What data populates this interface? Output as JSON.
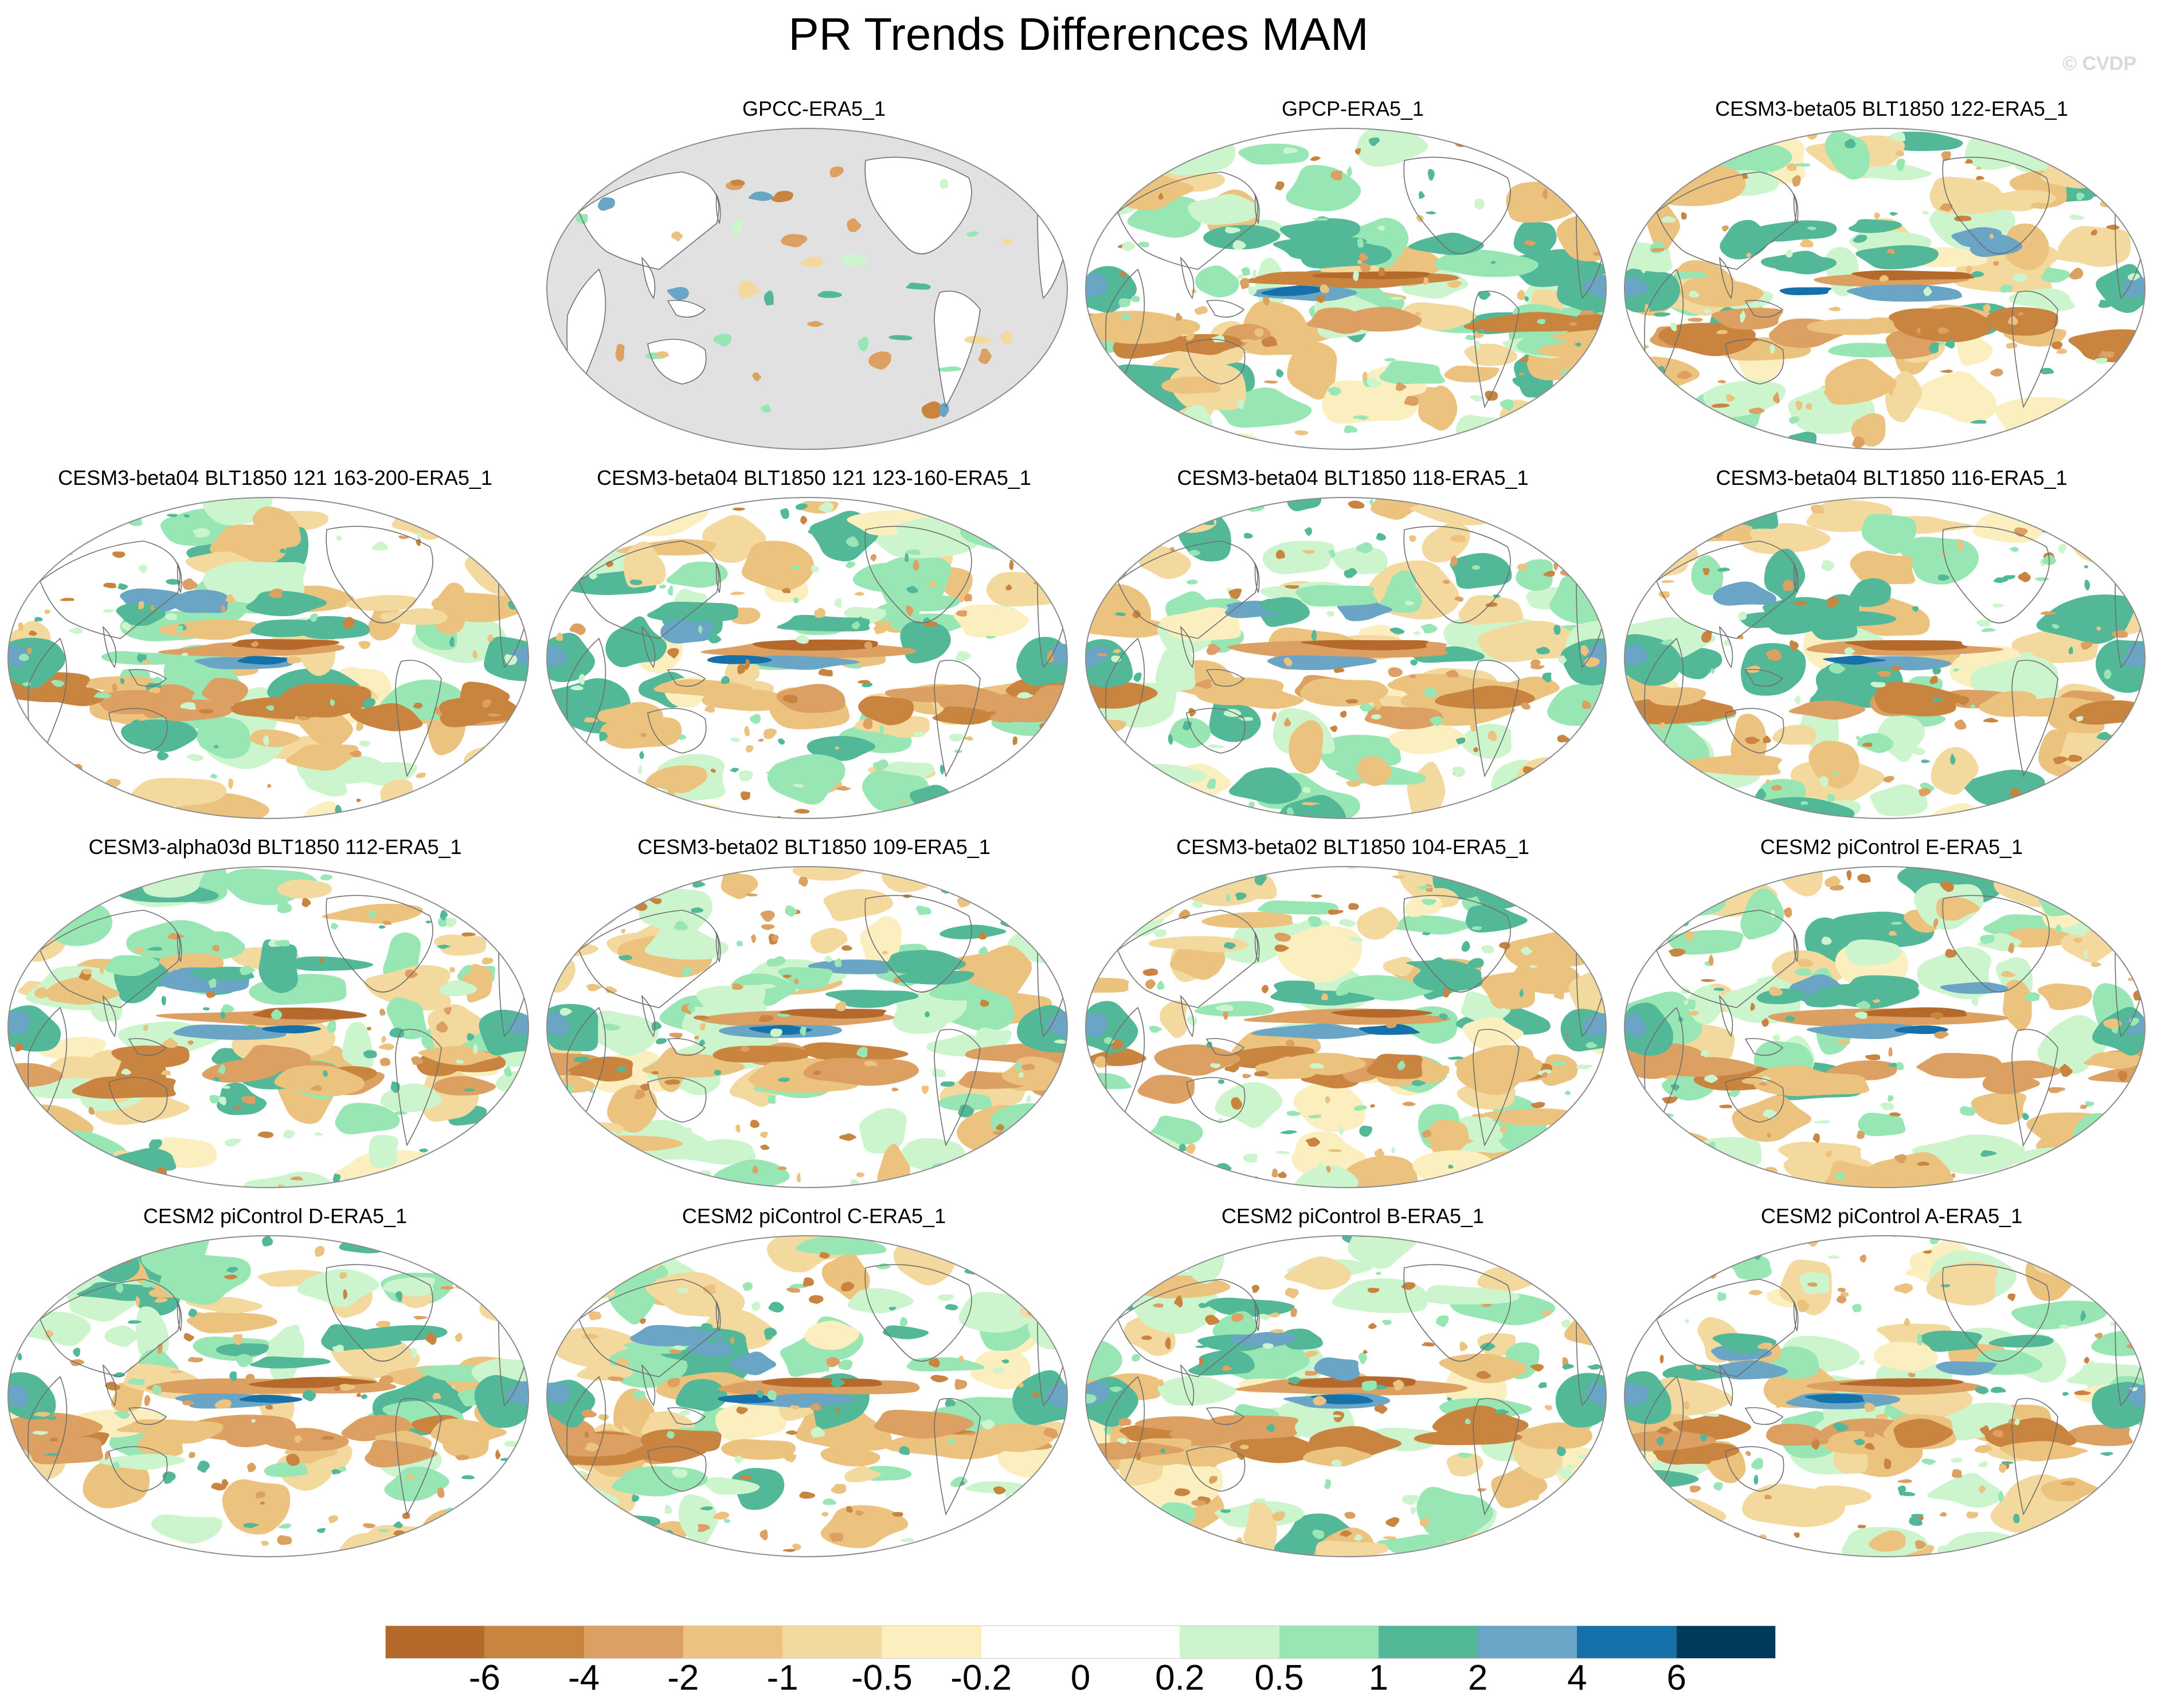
{
  "title": "PR Trends Differences MAM",
  "watermark": "© CVDP",
  "chart_data": {
    "type": "map",
    "projection": "robinson (global, Pacific-centered)",
    "season": "MAM",
    "variable": "PR trend difference",
    "panels": [
      {
        "title": "GPCC-ERA5_1",
        "land_only": true,
        "pattern": "gpcc"
      },
      {
        "title": "GPCP-ERA5_1",
        "pattern": "gpcp"
      },
      {
        "title": "CESM3-beta05 BLT1850 122-ERA5_1",
        "pattern": "model"
      },
      {
        "title": "CESM3-beta04 BLT1850 121 163-200-ERA5_1",
        "pattern": "model"
      },
      {
        "title": "CESM3-beta04 BLT1850 121 123-160-ERA5_1",
        "pattern": "model"
      },
      {
        "title": "CESM3-beta04 BLT1850 118-ERA5_1",
        "pattern": "model"
      },
      {
        "title": "CESM3-beta04 BLT1850 116-ERA5_1",
        "pattern": "model"
      },
      {
        "title": "CESM3-alpha03d BLT1850 112-ERA5_1",
        "pattern": "model"
      },
      {
        "title": "CESM3-beta02 BLT1850 109-ERA5_1",
        "pattern": "model"
      },
      {
        "title": "CESM3-beta02 BLT1850 104-ERA5_1",
        "pattern": "model"
      },
      {
        "title": "CESM2 piControl E-ERA5_1",
        "pattern": "model"
      },
      {
        "title": "CESM2 piControl D-ERA5_1",
        "pattern": "model"
      },
      {
        "title": "CESM2 piControl C-ERA5_1",
        "pattern": "model"
      },
      {
        "title": "CESM2 piControl B-ERA5_1",
        "pattern": "model"
      },
      {
        "title": "CESM2 piControl A-ERA5_1",
        "pattern": "model"
      }
    ],
    "colorbar": {
      "labels": [
        "-6",
        "-4",
        "-2",
        "-1",
        "-0.5",
        "-0.2",
        "0",
        "0.2",
        "0.5",
        "1",
        "2",
        "4",
        "6"
      ],
      "colors": [
        "#b5692a",
        "#c9843f",
        "#dba062",
        "#ecc27f",
        "#f3d99e",
        "#fbefbf",
        "#ffffff",
        "#ffffff",
        "#cdf5cd",
        "#98e6b4",
        "#52b898",
        "#6aa5c6",
        "#1670a9",
        "#003a5a"
      ]
    },
    "missing_color": "#e1e1e1"
  }
}
